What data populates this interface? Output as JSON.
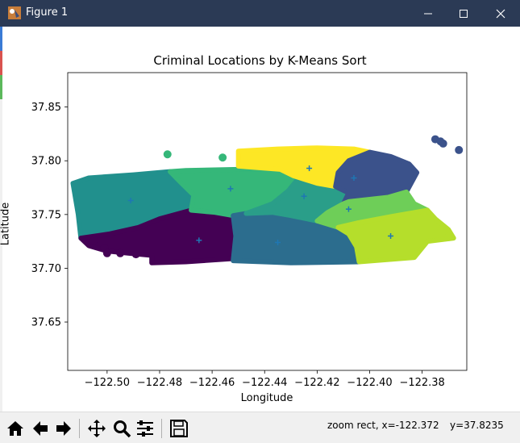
{
  "window": {
    "title": "Figure 1",
    "minimize_icon": "minimize-icon",
    "maximize_icon": "maximize-icon",
    "close_icon": "close-icon"
  },
  "toolbar": {
    "icons": [
      "home-icon",
      "back-arrow-icon",
      "forward-arrow-icon",
      "pan-icon",
      "zoom-icon",
      "subplots-icon",
      "save-icon"
    ]
  },
  "status": {
    "mode": "zoom rect, x=-122.372",
    "y_readout": "y=37.8235"
  },
  "chart_data": {
    "type": "scatter",
    "title": "Criminal Locations by K-Means Sort",
    "xlabel": "Longitude",
    "ylabel": "Latitude",
    "xlim": [
      -122.515,
      -122.363
    ],
    "ylim": [
      37.605,
      37.882
    ],
    "xticks": [
      -122.5,
      -122.48,
      -122.46,
      -122.44,
      -122.42,
      -122.4,
      -122.38
    ],
    "xtick_labels": [
      "−122.50",
      "−122.48",
      "−122.46",
      "−122.44",
      "−122.42",
      "−122.40",
      "−122.38"
    ],
    "yticks": [
      37.65,
      37.7,
      37.75,
      37.8,
      37.85
    ],
    "ytick_labels": [
      "37.65",
      "37.70",
      "37.75",
      "37.80",
      "37.85"
    ],
    "grid": false,
    "cluster_colors": [
      "#440154",
      "#21908d",
      "#2c6d8e",
      "#35b779",
      "#2a9e89",
      "#3b528b",
      "#fde725",
      "#6ece58",
      "#b5de2b"
    ],
    "centroid_color": "#1f77b4",
    "clusters": [
      {
        "color": "#21908d",
        "centroid": [
          -122.491,
          37.763
        ],
        "region": [
          [
            -122.513,
            37.779
          ],
          [
            -122.507,
            37.784
          ],
          [
            -122.49,
            37.787
          ],
          [
            -122.476,
            37.79
          ],
          [
            -122.472,
            37.78
          ],
          [
            -122.467,
            37.768
          ],
          [
            -122.468,
            37.754
          ],
          [
            -122.48,
            37.746
          ],
          [
            -122.488,
            37.738
          ],
          [
            -122.499,
            37.732
          ],
          [
            -122.51,
            37.728
          ],
          [
            -122.511,
            37.75
          ]
        ]
      },
      {
        "color": "#440154",
        "centroid": [
          -122.465,
          37.726
        ],
        "region": [
          [
            -122.51,
            37.728
          ],
          [
            -122.499,
            37.732
          ],
          [
            -122.488,
            37.738
          ],
          [
            -122.48,
            37.746
          ],
          [
            -122.468,
            37.754
          ],
          [
            -122.459,
            37.752
          ],
          [
            -122.452,
            37.749
          ],
          [
            -122.451,
            37.73
          ],
          [
            -122.452,
            37.709
          ],
          [
            -122.47,
            37.706
          ],
          [
            -122.483,
            37.705
          ],
          [
            -122.483,
            37.712
          ],
          [
            -122.492,
            37.714
          ],
          [
            -122.5,
            37.716
          ],
          [
            -122.507,
            37.721
          ]
        ]
      },
      {
        "color": "#35b779",
        "centroid": [
          -122.453,
          37.774
        ],
        "region": [
          [
            -122.476,
            37.79
          ],
          [
            -122.47,
            37.791
          ],
          [
            -122.45,
            37.792
          ],
          [
            -122.434,
            37.792
          ],
          [
            -122.427,
            37.784
          ],
          [
            -122.431,
            37.772
          ],
          [
            -122.437,
            37.76
          ],
          [
            -122.447,
            37.751
          ],
          [
            -122.452,
            37.749
          ],
          [
            -122.459,
            37.752
          ],
          [
            -122.468,
            37.754
          ],
          [
            -122.467,
            37.768
          ],
          [
            -122.472,
            37.78
          ]
        ]
      },
      {
        "color": "#2c6d8e",
        "centroid": [
          -122.435,
          37.724
        ],
        "region": [
          [
            -122.452,
            37.749
          ],
          [
            -122.447,
            37.751
          ],
          [
            -122.437,
            37.752
          ],
          [
            -122.43,
            37.749
          ],
          [
            -122.42,
            37.744
          ],
          [
            -122.416,
            37.738
          ],
          [
            -122.408,
            37.732
          ],
          [
            -122.405,
            37.72
          ],
          [
            -122.404,
            37.706
          ],
          [
            -122.43,
            37.705
          ],
          [
            -122.452,
            37.707
          ],
          [
            -122.451,
            37.73
          ]
        ]
      },
      {
        "color": "#2a9e89",
        "centroid": [
          -122.425,
          37.767
        ],
        "region": [
          [
            -122.434,
            37.792
          ],
          [
            -122.429,
            37.786
          ],
          [
            -122.42,
            37.779
          ],
          [
            -122.413,
            37.776
          ],
          [
            -122.408,
            37.77
          ],
          [
            -122.41,
            37.76
          ],
          [
            -122.416,
            37.752
          ],
          [
            -122.42,
            37.744
          ],
          [
            -122.43,
            37.749
          ],
          [
            -122.437,
            37.752
          ],
          [
            -122.447,
            37.751
          ],
          [
            -122.437,
            37.76
          ],
          [
            -122.431,
            37.772
          ],
          [
            -122.427,
            37.784
          ]
        ]
      },
      {
        "color": "#fde725",
        "centroid": [
          -122.423,
          37.793
        ],
        "region": [
          [
            -122.45,
            37.809
          ],
          [
            -122.435,
            37.811
          ],
          [
            -122.42,
            37.812
          ],
          [
            -122.406,
            37.811
          ],
          [
            -122.4,
            37.808
          ],
          [
            -122.408,
            37.8
          ],
          [
            -122.412,
            37.789
          ],
          [
            -122.413,
            37.776
          ],
          [
            -122.42,
            37.779
          ],
          [
            -122.429,
            37.786
          ],
          [
            -122.434,
            37.792
          ],
          [
            -122.45,
            37.795
          ]
        ]
      },
      {
        "color": "#3b528b",
        "centroid": [
          -122.406,
          37.784
        ],
        "region": [
          [
            -122.4,
            37.808
          ],
          [
            -122.392,
            37.804
          ],
          [
            -122.385,
            37.797
          ],
          [
            -122.382,
            37.789
          ],
          [
            -122.386,
            37.771
          ],
          [
            -122.393,
            37.766
          ],
          [
            -122.408,
            37.762
          ],
          [
            -122.41,
            37.76
          ],
          [
            -122.408,
            37.77
          ],
          [
            -122.413,
            37.776
          ],
          [
            -122.412,
            37.789
          ],
          [
            -122.408,
            37.8
          ]
        ]
      },
      {
        "color": "#6ece58",
        "centroid": [
          -122.408,
          37.755
        ],
        "region": [
          [
            -122.416,
            37.752
          ],
          [
            -122.41,
            37.76
          ],
          [
            -122.408,
            37.762
          ],
          [
            -122.393,
            37.766
          ],
          [
            -122.386,
            37.771
          ],
          [
            -122.383,
            37.76
          ],
          [
            -122.378,
            37.754
          ],
          [
            -122.392,
            37.748
          ],
          [
            -122.405,
            37.742
          ],
          [
            -122.412,
            37.738
          ],
          [
            -122.42,
            37.744
          ]
        ]
      },
      {
        "color": "#b5de2b",
        "centroid": [
          -122.392,
          37.73
        ],
        "region": [
          [
            -122.412,
            37.738
          ],
          [
            -122.405,
            37.742
          ],
          [
            -122.392,
            37.748
          ],
          [
            -122.378,
            37.754
          ],
          [
            -122.375,
            37.746
          ],
          [
            -122.37,
            37.736
          ],
          [
            -122.368,
            37.728
          ],
          [
            -122.378,
            37.725
          ],
          [
            -122.383,
            37.71
          ],
          [
            -122.404,
            37.706
          ],
          [
            -122.405,
            37.72
          ],
          [
            -122.408,
            37.732
          ]
        ]
      }
    ],
    "outliers": [
      {
        "x": -122.477,
        "y": 37.806,
        "color": "#35b779"
      },
      {
        "x": -122.456,
        "y": 37.803,
        "color": "#35b779"
      },
      {
        "x": -122.375,
        "y": 37.82,
        "color": "#3b528b"
      },
      {
        "x": -122.373,
        "y": 37.818,
        "color": "#3b528b"
      },
      {
        "x": -122.372,
        "y": 37.816,
        "color": "#3b528b"
      },
      {
        "x": -122.366,
        "y": 37.81,
        "color": "#3b528b"
      },
      {
        "x": -122.505,
        "y": 37.726,
        "color": "#440154"
      },
      {
        "x": -122.501,
        "y": 37.719,
        "color": "#440154"
      },
      {
        "x": -122.5,
        "y": 37.714,
        "color": "#440154"
      },
      {
        "x": -122.495,
        "y": 37.714,
        "color": "#440154"
      },
      {
        "x": -122.489,
        "y": 37.713,
        "color": "#440154"
      },
      {
        "x": -122.37,
        "y": 37.729,
        "color": "#b5de2b"
      }
    ]
  }
}
